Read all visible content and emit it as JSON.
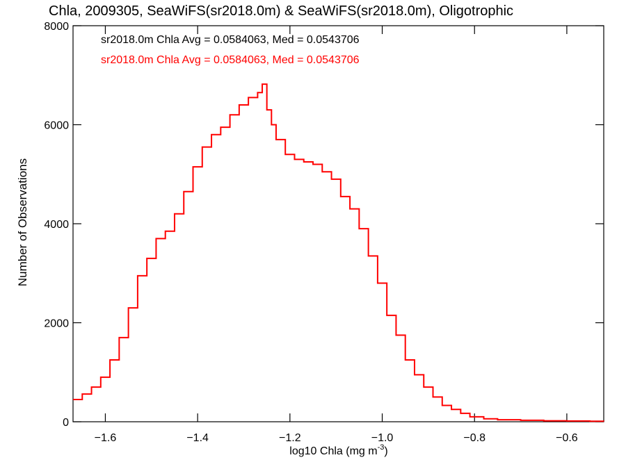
{
  "chart_data": {
    "type": "line",
    "title": "Chla, 2009305, SeaWiFS(sr2018.0m) & SeaWiFS(sr2018.0m), Oligotrophic",
    "xlabel_main": "log10 Chla (mg m",
    "xlabel_sup": "-3",
    "xlabel_close": ")",
    "ylabel": "Number of Observations",
    "xlim": [
      -1.67,
      -0.52
    ],
    "ylim": [
      0,
      8000
    ],
    "x_ticks": [
      -1.6,
      -1.4,
      -1.2,
      -1.0,
      -0.8,
      -0.6
    ],
    "x_tick_labels": [
      "−1.6",
      "−1.4",
      "−1.2",
      "−1.0",
      "−0.8",
      "−0.6"
    ],
    "y_ticks": [
      0,
      2000,
      4000,
      6000,
      8000
    ],
    "y_tick_labels": [
      "0",
      "2000",
      "4000",
      "6000",
      "8000"
    ],
    "annotations": [
      {
        "text": "sr2018.0m Chla Avg = 0.0584063, Med = 0.0543706",
        "color": "#000000"
      },
      {
        "text": "sr2018.0m Chla Avg = 0.0584063, Med = 0.0543706",
        "color": "#ff0000"
      }
    ],
    "series": [
      {
        "color": "#ff0000",
        "x": [
          -1.67,
          -1.65,
          -1.63,
          -1.61,
          -1.59,
          -1.57,
          -1.55,
          -1.53,
          -1.51,
          -1.49,
          -1.47,
          -1.45,
          -1.43,
          -1.41,
          -1.39,
          -1.37,
          -1.35,
          -1.33,
          -1.31,
          -1.29,
          -1.27,
          -1.26,
          -1.25,
          -1.24,
          -1.23,
          -1.21,
          -1.19,
          -1.17,
          -1.15,
          -1.13,
          -1.11,
          -1.09,
          -1.07,
          -1.05,
          -1.03,
          -1.01,
          -0.99,
          -0.97,
          -0.95,
          -0.93,
          -0.91,
          -0.89,
          -0.87,
          -0.85,
          -0.83,
          -0.81,
          -0.78,
          -0.75,
          -0.7,
          -0.65,
          -0.6,
          -0.55,
          -0.52
        ],
        "y": [
          450,
          560,
          700,
          900,
          1250,
          1700,
          2300,
          2950,
          3300,
          3700,
          3850,
          4200,
          4650,
          5150,
          5550,
          5800,
          5950,
          6200,
          6400,
          6550,
          6650,
          6820,
          6300,
          6000,
          5700,
          5400,
          5300,
          5250,
          5200,
          5050,
          4900,
          4550,
          4300,
          3900,
          3350,
          2800,
          2150,
          1750,
          1250,
          950,
          700,
          500,
          330,
          250,
          170,
          100,
          60,
          40,
          30,
          20,
          15,
          10,
          8
        ]
      }
    ]
  }
}
